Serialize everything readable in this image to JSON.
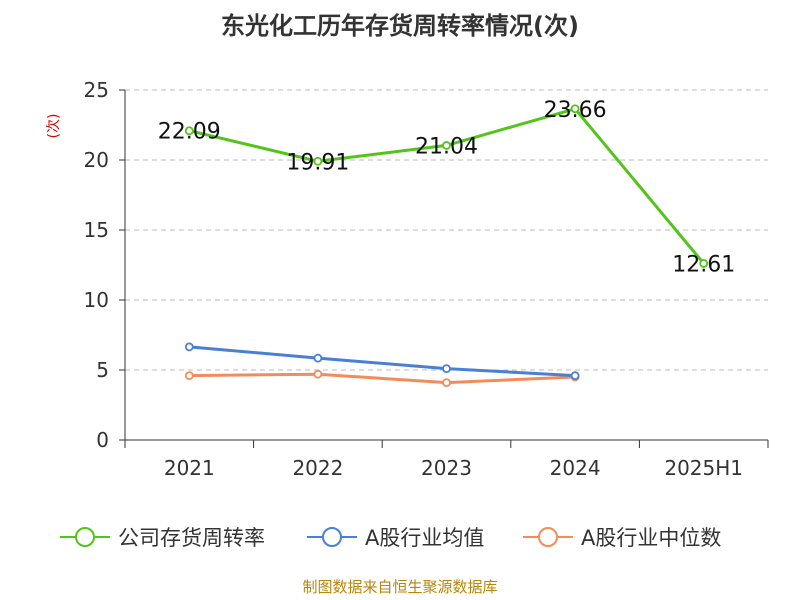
{
  "chart_data": {
    "type": "line",
    "title": "东光化工历年存货周转率情况(次)",
    "ylabel": "(次)",
    "categories": [
      "2021",
      "2022",
      "2023",
      "2024",
      "2025H1"
    ],
    "ylim": [
      0,
      25
    ],
    "yticks": [
      0,
      5,
      10,
      15,
      20,
      25
    ],
    "grid": true,
    "legend_position": "bottom",
    "series": [
      {
        "name": "公司存货周转率",
        "color": "#52c41a",
        "values": [
          22.09,
          19.91,
          21.04,
          23.66,
          12.61
        ],
        "labels": [
          "22.09",
          "19.91",
          "21.04",
          "23.66",
          "12.61"
        ]
      },
      {
        "name": "A股行业均值",
        "color": "#4a7fd8",
        "values": [
          6.65,
          5.85,
          5.1,
          4.6,
          null
        ]
      },
      {
        "name": "A股行业中位数",
        "color": "#f38b5a",
        "values": [
          4.6,
          4.7,
          4.1,
          4.5,
          null
        ]
      }
    ]
  },
  "source": "制图数据来自恒生聚源数据库"
}
